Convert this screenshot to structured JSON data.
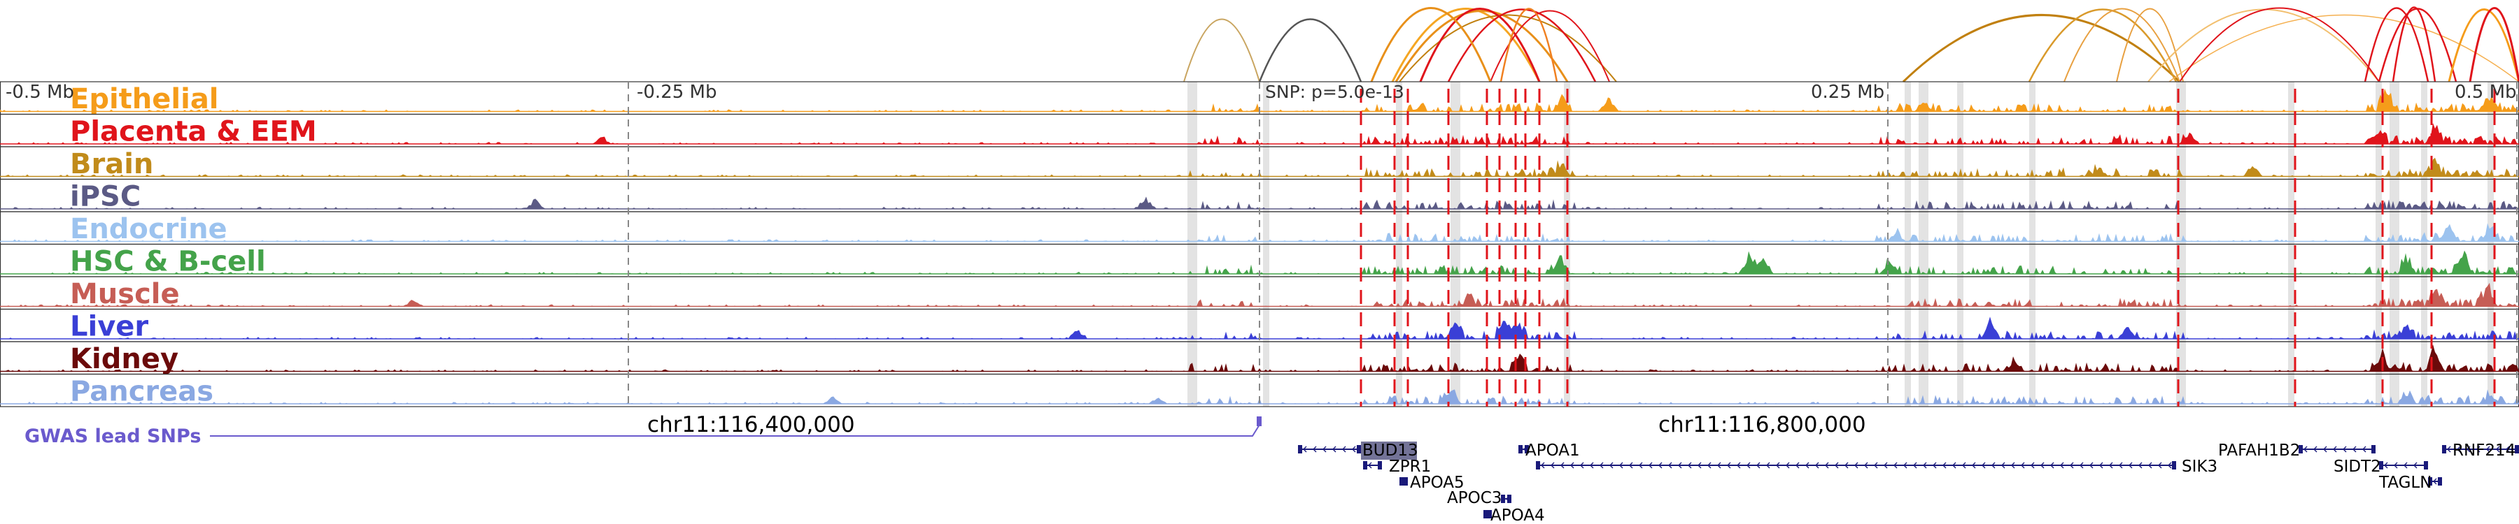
{
  "scale": {
    "ticks": [
      {
        "label": "-0.5 Mb",
        "pos": -0.5
      },
      {
        "label": "-0.25 Mb",
        "pos": -0.25
      },
      {
        "label": "0.25 Mb",
        "pos": 0.25
      },
      {
        "label": "0.5 Mb",
        "pos": 0.5
      }
    ]
  },
  "snp_label": "SNP: p=5.0e-13",
  "gwas": {
    "label": "GWAS lead SNPs",
    "color": "#6a5acd"
  },
  "coordinates": [
    "chr11:116,400,000",
    "chr11:116,800,000"
  ],
  "tracks": [
    {
      "name": "Epithelial",
      "color": "#f59c1a"
    },
    {
      "name": "Placenta & EEM",
      "color": "#e0141b"
    },
    {
      "name": "Brain",
      "color": "#c18b1a"
    },
    {
      "name": "iPSC",
      "color": "#5b5a85"
    },
    {
      "name": "Endocrine",
      "color": "#9cc3ef"
    },
    {
      "name": "HSC & B-cell",
      "color": "#44a34a"
    },
    {
      "name": "Muscle",
      "color": "#c65d55"
    },
    {
      "name": "Liver",
      "color": "#3a3fd6"
    },
    {
      "name": "Kidney",
      "color": "#6b0a0a"
    },
    {
      "name": "Pancreas",
      "color": "#8aa8e2"
    }
  ],
  "genes": [
    {
      "name": "BUD13",
      "highlight": true
    },
    {
      "name": "ZPR1"
    },
    {
      "name": "APOA5"
    },
    {
      "name": "APOC3"
    },
    {
      "name": "APOA4"
    },
    {
      "name": "APOA1"
    },
    {
      "name": "SIK3"
    },
    {
      "name": "PAFAH1B2"
    },
    {
      "name": "SIDT2"
    },
    {
      "name": "TAGLN"
    },
    {
      "name": "RNF214"
    }
  ],
  "colors": {
    "red_line": "#e0141b",
    "grey_band": "#d9d9d9",
    "gene": "#1a1a7a",
    "highlight": "#5b5a85"
  }
}
